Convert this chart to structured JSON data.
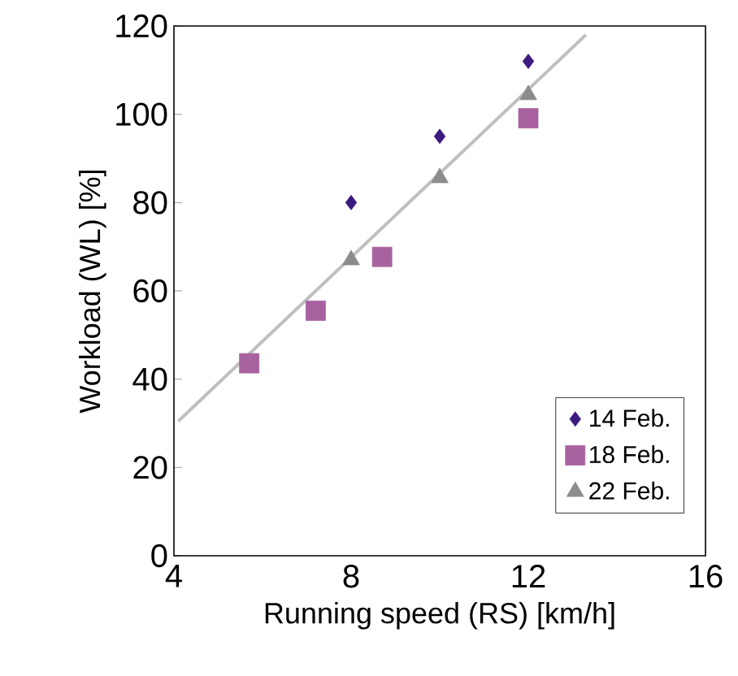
{
  "chart_data": {
    "type": "scatter",
    "xlabel": "Running speed (RS) [km/h]",
    "ylabel": "Workload (WL)  [%]",
    "xlim": [
      4,
      16
    ],
    "xticks": [
      4,
      8,
      12,
      16
    ],
    "ylim": [
      0,
      120
    ],
    "yticks": [
      0,
      20,
      40,
      60,
      80,
      100,
      120
    ],
    "grid": false,
    "legend": "bottom right",
    "series": [
      {
        "name": "14 Feb.",
        "color": "#3d1a80",
        "marker": "diamond",
        "x": [
          8,
          10,
          12
        ],
        "values": [
          80,
          95,
          112
        ]
      },
      {
        "name": "18 Feb.",
        "color": "#a8629f",
        "marker": "square",
        "x": [
          5.7,
          7.2,
          8.7,
          12
        ],
        "values": [
          43.6,
          55.5,
          67.7,
          99.1
        ]
      },
      {
        "name": "22 Feb.",
        "color": "#8c8c8c",
        "marker": "triangle",
        "x": [
          8,
          10,
          12
        ],
        "values": [
          67,
          85.6,
          104.4
        ]
      },
      {
        "type": "line",
        "color": "#bfbfbf",
        "marker": "none",
        "x": [
          4.1,
          13.3
        ],
        "values": [
          30.5,
          118
        ]
      }
    ]
  }
}
